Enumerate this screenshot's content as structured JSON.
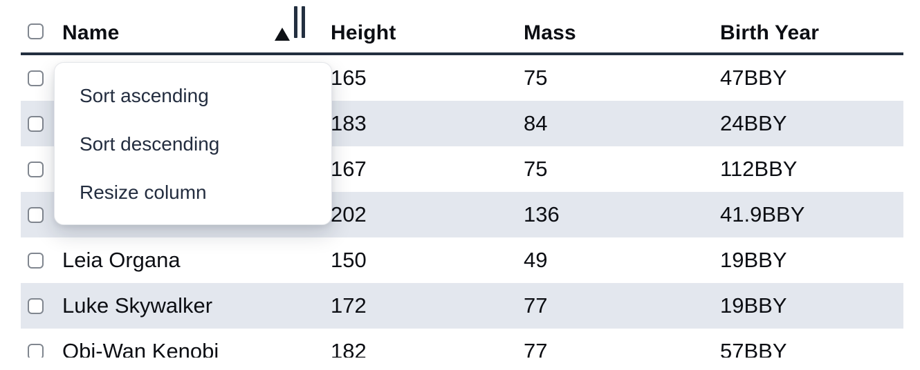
{
  "table": {
    "columns": [
      {
        "key": "name",
        "label": "Name"
      },
      {
        "key": "height",
        "label": "Height"
      },
      {
        "key": "mass",
        "label": "Mass"
      },
      {
        "key": "birth_year",
        "label": "Birth Year"
      }
    ],
    "sort": {
      "column": "Name",
      "direction": "ascending"
    },
    "rows": [
      {
        "name": "",
        "height": "165",
        "mass": "75",
        "birth_year": "47BBY",
        "checked": false
      },
      {
        "name": "",
        "height": "183",
        "mass": "84",
        "birth_year": "24BBY",
        "checked": false
      },
      {
        "name": "",
        "height": "167",
        "mass": "75",
        "birth_year": "112BBY",
        "checked": false
      },
      {
        "name": "",
        "height": "202",
        "mass": "136",
        "birth_year": "41.9BBY",
        "checked": false
      },
      {
        "name": "Leia Organa",
        "height": "150",
        "mass": "49",
        "birth_year": "19BBY",
        "checked": false
      },
      {
        "name": "Luke Skywalker",
        "height": "172",
        "mass": "77",
        "birth_year": "19BBY",
        "checked": false
      },
      {
        "name": "Obi-Wan Kenobi",
        "height": "182",
        "mass": "77",
        "birth_year": "57BBY",
        "checked": false
      }
    ]
  },
  "context_menu": {
    "items": [
      {
        "label": "Sort ascending"
      },
      {
        "label": "Sort descending"
      },
      {
        "label": "Resize column"
      }
    ]
  },
  "icons": {
    "sort_ascending": "solid upward triangle",
    "column_resize": "double vertical bars",
    "checkbox": "rounded square outline"
  },
  "colors": {
    "header_rule": "#232f40",
    "stripe_row_bg": "#e3e7ee",
    "text_primary": "#0c0e13",
    "menu_text": "#232d3f",
    "checkbox_border": "#80868f",
    "menu_border": "#e4e6ea",
    "background": "#ffffff"
  }
}
